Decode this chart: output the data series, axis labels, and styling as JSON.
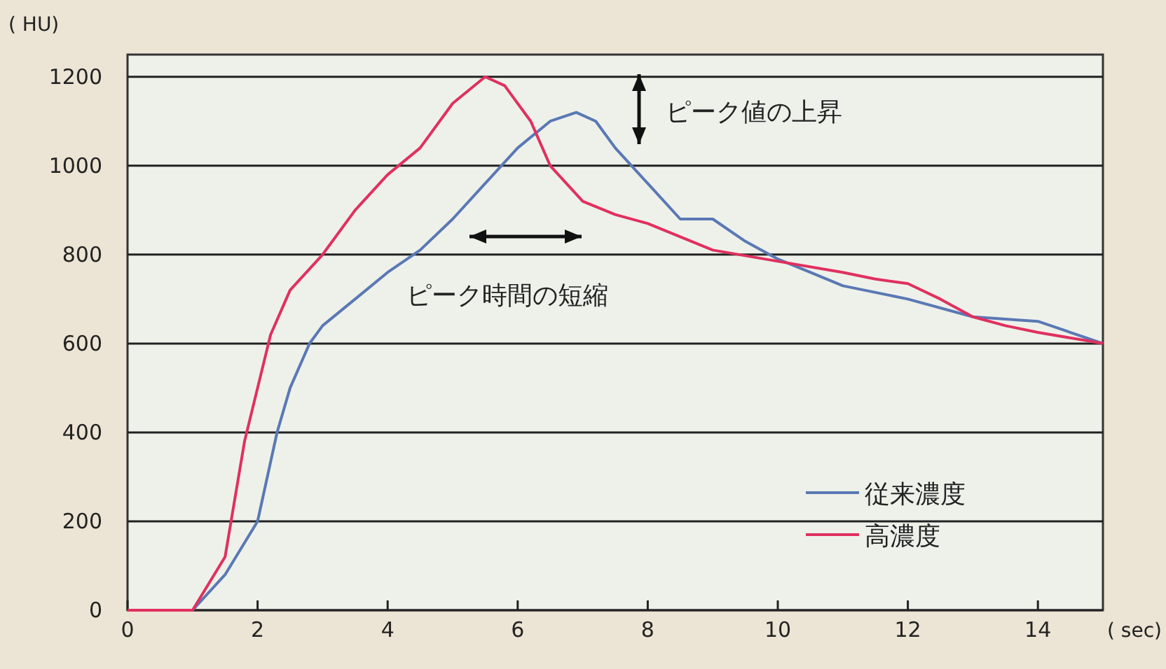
{
  "chart_data": {
    "type": "line",
    "xlabel": "( sec)",
    "ylabel": "( HU)",
    "xlim": [
      0,
      15
    ],
    "ylim": [
      0,
      1250
    ],
    "xticks": [
      0,
      2,
      4,
      6,
      8,
      10,
      12,
      14
    ],
    "yticks": [
      0,
      200,
      400,
      600,
      800,
      1000,
      1200
    ],
    "grid": "y",
    "legend": "bottom right",
    "line_style": "solid",
    "marker": "none",
    "annotations": [
      "ピーク値の上昇",
      "ピーク時間の短縮"
    ],
    "series": [
      {
        "name": "従来濃度",
        "color": "#5a78b4",
        "x": [
          0,
          0.5,
          1.0,
          1.5,
          2.0,
          2.3,
          2.5,
          2.8,
          3.0,
          3.5,
          4.0,
          4.5,
          5.0,
          5.5,
          6.0,
          6.5,
          6.9,
          7.2,
          7.5,
          8.0,
          8.5,
          9.0,
          9.5,
          10,
          10.5,
          11,
          12,
          13,
          14,
          15
        ],
        "values": [
          0,
          0,
          0,
          80,
          200,
          400,
          500,
          600,
          640,
          700,
          760,
          810,
          880,
          960,
          1040,
          1100,
          1120,
          1100,
          1040,
          960,
          880,
          880,
          830,
          790,
          760,
          730,
          700,
          660,
          650,
          600
        ]
      },
      {
        "name": "高濃度",
        "color": "#e0305f",
        "x": [
          0,
          0.5,
          0.8,
          1.0,
          1.5,
          1.8,
          2.0,
          2.2,
          2.5,
          3.0,
          3.5,
          4.0,
          4.5,
          5.0,
          5.5,
          5.8,
          6.2,
          6.5,
          7.0,
          7.5,
          8.0,
          8.5,
          9.0,
          10,
          11,
          11.5,
          12,
          12.5,
          13,
          13.5,
          14,
          15
        ],
        "values": [
          0,
          0,
          0,
          0,
          120,
          380,
          500,
          620,
          720,
          800,
          900,
          980,
          1040,
          1140,
          1200,
          1180,
          1100,
          1000,
          920,
          890,
          870,
          840,
          810,
          785,
          760,
          745,
          735,
          700,
          660,
          640,
          625,
          600
        ]
      }
    ]
  }
}
